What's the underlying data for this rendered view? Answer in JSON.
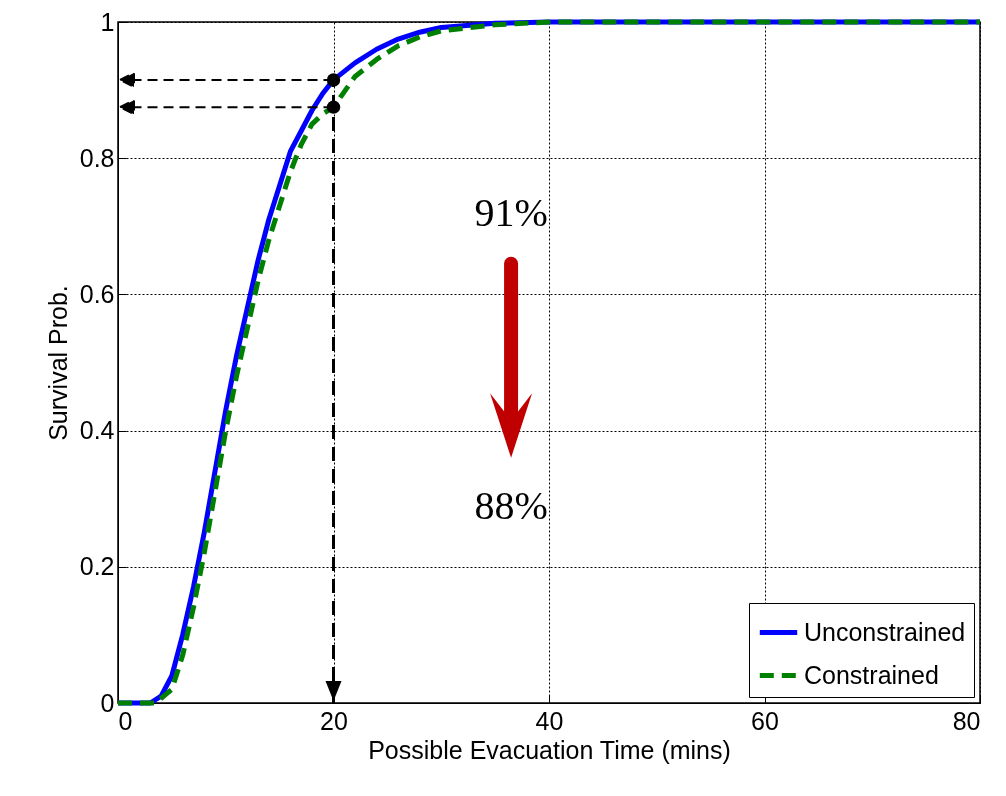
{
  "chart_data": {
    "type": "line",
    "xlabel": "Possible Evacuation Time (mins)",
    "ylabel": "Survival Prob.",
    "xlim": [
      0,
      80
    ],
    "xticks": [
      0,
      20,
      40,
      60,
      80
    ],
    "ylim": [
      0,
      1
    ],
    "yticks": [
      0,
      0.2,
      0.4,
      0.6,
      0.8,
      1
    ],
    "grid": true,
    "legend": "bottom right",
    "marker": "none",
    "annotations": [
      "91%",
      "88%"
    ],
    "ref_lines": [
      {
        "axis": "x",
        "value": 20,
        "color": "#000000",
        "line_style": "dashed"
      }
    ],
    "series": [
      {
        "name": "Unconstrained",
        "color": "#0000ff",
        "line_style": "solid",
        "x": [
          0,
          3,
          4,
          5,
          6,
          7,
          8,
          9,
          10,
          11,
          12,
          13,
          14,
          15,
          16,
          17,
          18,
          19,
          20,
          22,
          24,
          26,
          28,
          30,
          35,
          40,
          80
        ],
        "values": [
          0,
          0,
          0.01,
          0.04,
          0.1,
          0.17,
          0.25,
          0.34,
          0.43,
          0.51,
          0.58,
          0.65,
          0.71,
          0.76,
          0.81,
          0.84,
          0.87,
          0.895,
          0.915,
          0.94,
          0.96,
          0.975,
          0.985,
          0.992,
          0.998,
          1,
          1
        ]
      },
      {
        "name": "Constrained",
        "color": "#008000",
        "line_style": "dashed",
        "x": [
          0,
          3.5,
          5,
          6,
          7,
          8,
          9,
          10,
          11,
          12,
          13,
          14,
          15,
          16,
          17,
          18,
          19,
          20,
          22,
          24,
          26,
          28,
          30,
          35,
          40,
          80
        ],
        "values": [
          0,
          0,
          0.02,
          0.07,
          0.14,
          0.22,
          0.31,
          0.4,
          0.48,
          0.55,
          0.62,
          0.68,
          0.73,
          0.78,
          0.82,
          0.85,
          0.865,
          0.875,
          0.92,
          0.945,
          0.965,
          0.978,
          0.987,
          0.996,
          1,
          1
        ]
      },
      {
        "type": "scatter",
        "color": "#000000",
        "marker": "circle",
        "x": [
          20,
          20
        ],
        "values": [
          0.915,
          0.875
        ]
      }
    ]
  }
}
